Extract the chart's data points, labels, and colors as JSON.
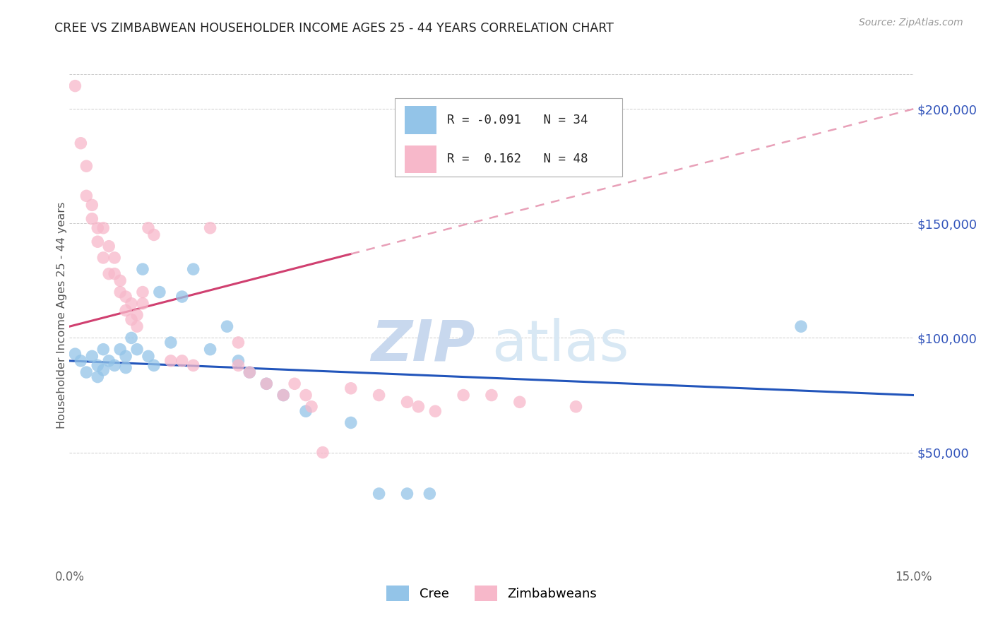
{
  "title": "CREE VS ZIMBABWEAN HOUSEHOLDER INCOME AGES 25 - 44 YEARS CORRELATION CHART",
  "source": "Source: ZipAtlas.com",
  "ylabel": "Householder Income Ages 25 - 44 years",
  "xlim": [
    0.0,
    0.15
  ],
  "ylim": [
    0,
    220000
  ],
  "xticks": [
    0.0,
    0.03,
    0.06,
    0.09,
    0.12,
    0.15
  ],
  "xticklabels": [
    "0.0%",
    "",
    "",
    "",
    "",
    "15.0%"
  ],
  "yticks_right": [
    50000,
    100000,
    150000,
    200000
  ],
  "ytick_labels_right": [
    "$50,000",
    "$100,000",
    "$150,000",
    "$200,000"
  ],
  "cree_R": "-0.091",
  "cree_N": "34",
  "zimb_R": "0.162",
  "zimb_N": "48",
  "cree_color": "#93c4e8",
  "zimb_color": "#f7b8ca",
  "cree_line_color": "#2255bb",
  "zimb_line_color": "#d04070",
  "zimb_dash_color": "#e8a0b8",
  "watermark_zip": "ZIP",
  "watermark_atlas": "atlas",
  "watermark_color": "#d8e4f0",
  "background_color": "#ffffff",
  "cree_points": [
    [
      0.001,
      93000
    ],
    [
      0.002,
      90000
    ],
    [
      0.003,
      85000
    ],
    [
      0.004,
      92000
    ],
    [
      0.005,
      88000
    ],
    [
      0.005,
      83000
    ],
    [
      0.006,
      95000
    ],
    [
      0.006,
      86000
    ],
    [
      0.007,
      90000
    ],
    [
      0.008,
      88000
    ],
    [
      0.009,
      95000
    ],
    [
      0.01,
      92000
    ],
    [
      0.01,
      87000
    ],
    [
      0.011,
      100000
    ],
    [
      0.012,
      95000
    ],
    [
      0.013,
      130000
    ],
    [
      0.014,
      92000
    ],
    [
      0.015,
      88000
    ],
    [
      0.016,
      120000
    ],
    [
      0.018,
      98000
    ],
    [
      0.02,
      118000
    ],
    [
      0.022,
      130000
    ],
    [
      0.025,
      95000
    ],
    [
      0.028,
      105000
    ],
    [
      0.03,
      90000
    ],
    [
      0.032,
      85000
    ],
    [
      0.035,
      80000
    ],
    [
      0.038,
      75000
    ],
    [
      0.042,
      68000
    ],
    [
      0.05,
      63000
    ],
    [
      0.055,
      32000
    ],
    [
      0.06,
      32000
    ],
    [
      0.064,
      32000
    ],
    [
      0.13,
      105000
    ]
  ],
  "zimb_points": [
    [
      0.001,
      210000
    ],
    [
      0.002,
      185000
    ],
    [
      0.003,
      175000
    ],
    [
      0.003,
      162000
    ],
    [
      0.004,
      158000
    ],
    [
      0.004,
      152000
    ],
    [
      0.005,
      148000
    ],
    [
      0.005,
      142000
    ],
    [
      0.006,
      148000
    ],
    [
      0.006,
      135000
    ],
    [
      0.007,
      140000
    ],
    [
      0.007,
      128000
    ],
    [
      0.008,
      135000
    ],
    [
      0.008,
      128000
    ],
    [
      0.009,
      125000
    ],
    [
      0.009,
      120000
    ],
    [
      0.01,
      118000
    ],
    [
      0.01,
      112000
    ],
    [
      0.011,
      115000
    ],
    [
      0.011,
      108000
    ],
    [
      0.012,
      110000
    ],
    [
      0.012,
      105000
    ],
    [
      0.013,
      120000
    ],
    [
      0.013,
      115000
    ],
    [
      0.014,
      148000
    ],
    [
      0.015,
      145000
    ],
    [
      0.018,
      90000
    ],
    [
      0.02,
      90000
    ],
    [
      0.022,
      88000
    ],
    [
      0.025,
      148000
    ],
    [
      0.03,
      98000
    ],
    [
      0.03,
      88000
    ],
    [
      0.032,
      85000
    ],
    [
      0.035,
      80000
    ],
    [
      0.038,
      75000
    ],
    [
      0.04,
      80000
    ],
    [
      0.042,
      75000
    ],
    [
      0.043,
      70000
    ],
    [
      0.045,
      50000
    ],
    [
      0.05,
      78000
    ],
    [
      0.055,
      75000
    ],
    [
      0.06,
      72000
    ],
    [
      0.062,
      70000
    ],
    [
      0.065,
      68000
    ],
    [
      0.07,
      75000
    ],
    [
      0.075,
      75000
    ],
    [
      0.08,
      72000
    ],
    [
      0.09,
      70000
    ]
  ]
}
